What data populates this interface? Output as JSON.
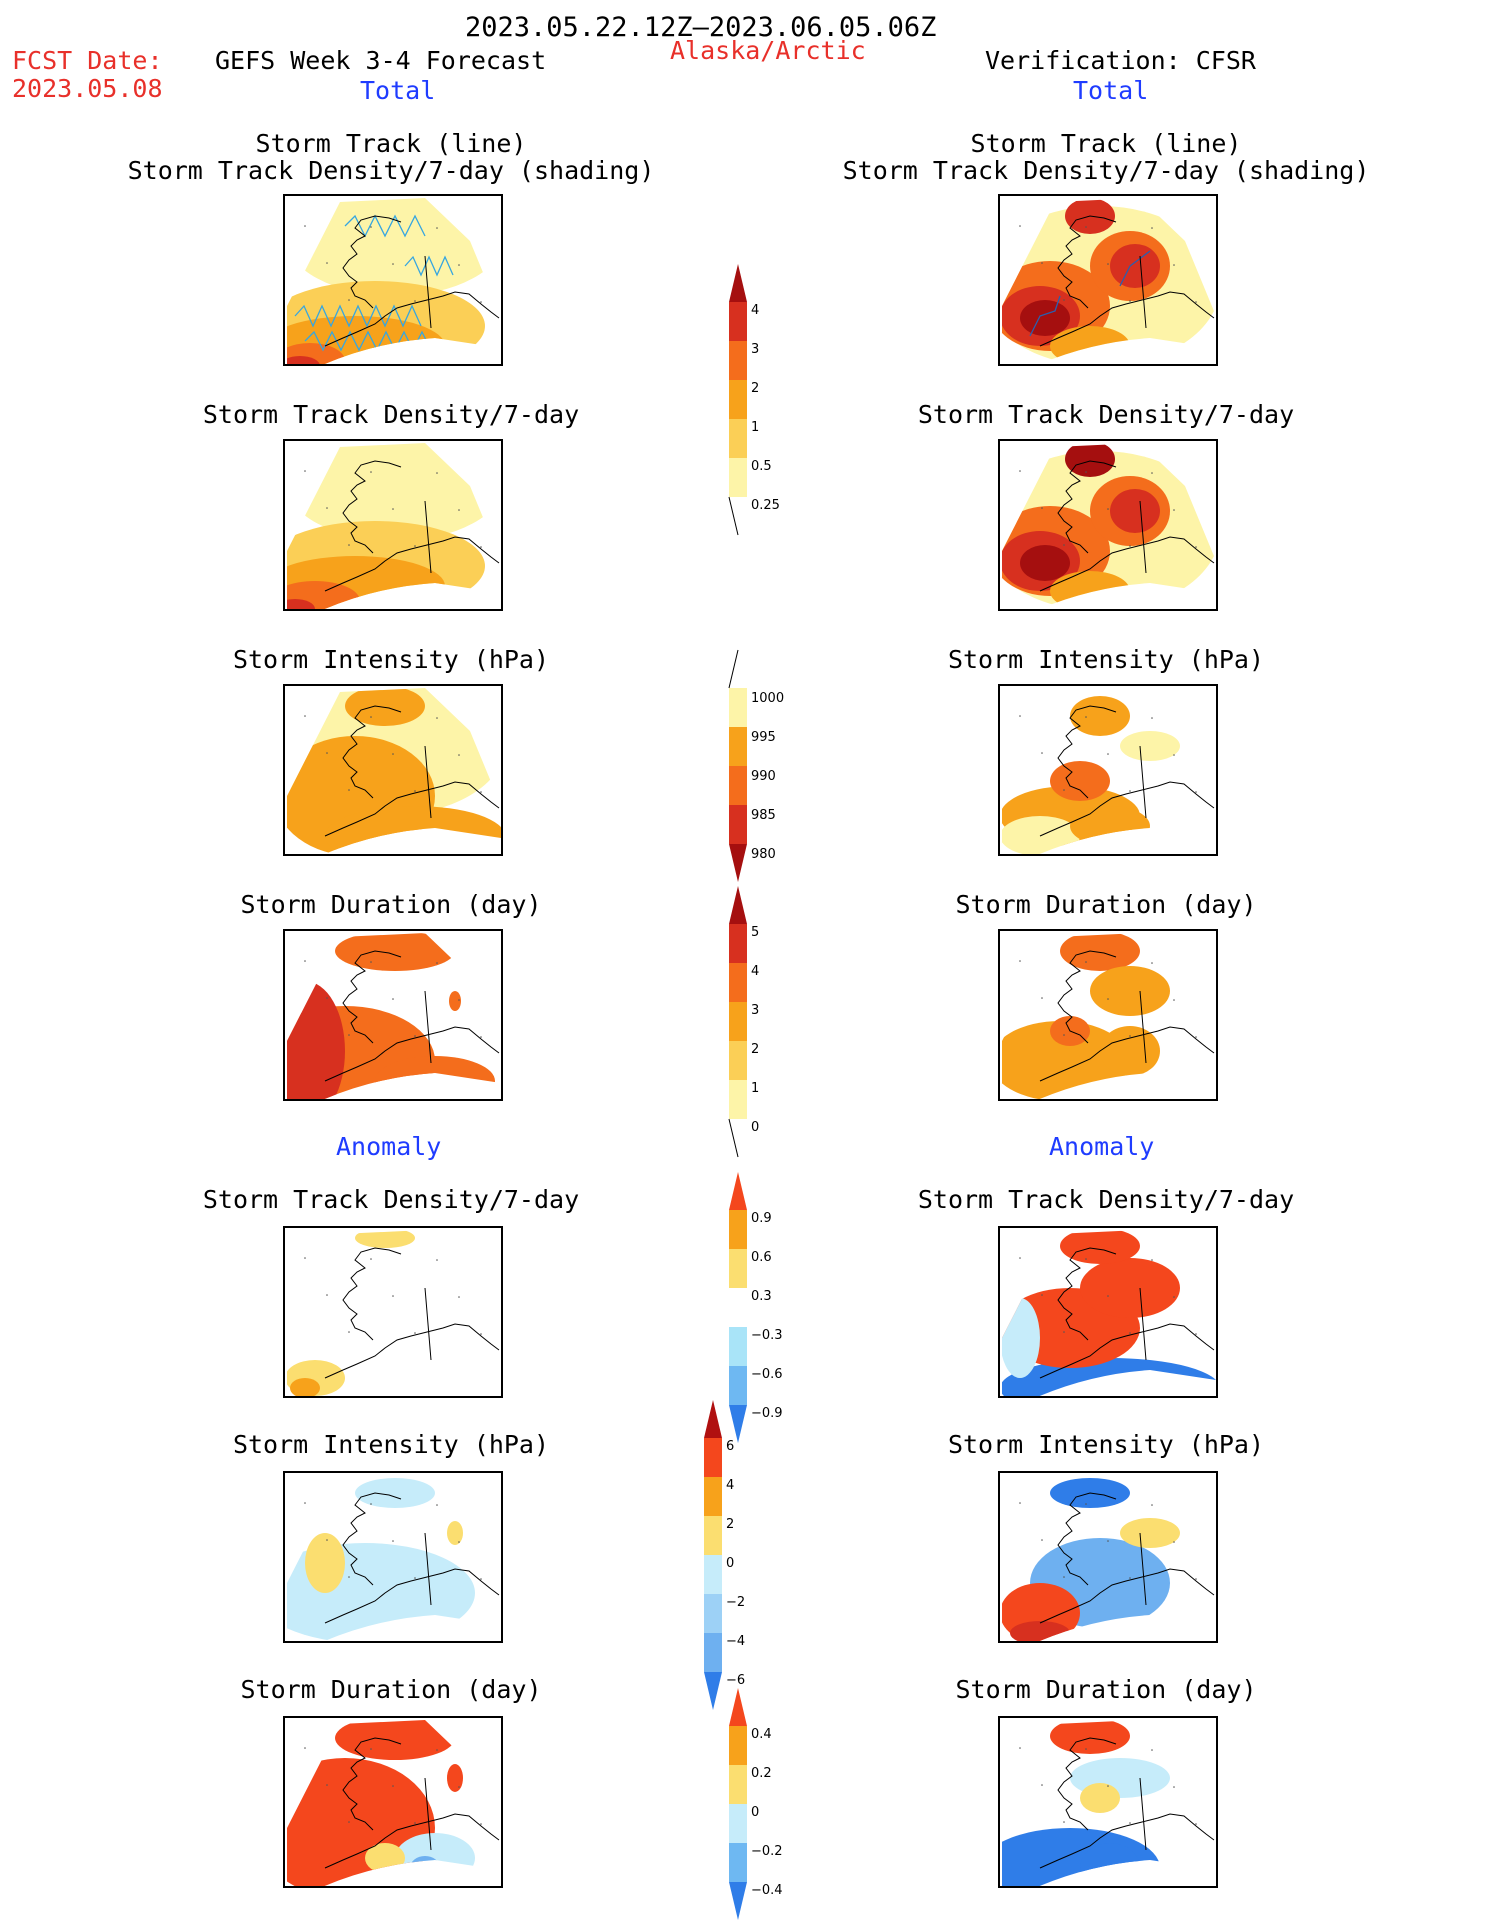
{
  "header": {
    "period": "2023.05.22.12Z–2023.06.05.06Z",
    "fcst_label": "FCST Date:",
    "fcst_date": "2023.05.08",
    "forecast_title": "GEFS Week 3-4 Forecast",
    "region": "Alaska/Arctic",
    "verification_title": "Verification: CFSR",
    "left_total": "Total",
    "right_total": "Total",
    "left_anomaly": "Anomaly",
    "right_anomaly": "Anomaly"
  },
  "panel_titles": {
    "track_line": "Storm Track (line)",
    "track_shading": "Storm Track Density/7-day (shading)",
    "density": "Storm Track Density/7-day",
    "intensity": "Storm Intensity (hPa)",
    "duration": "Storm Duration (day)"
  },
  "colorbars": {
    "density": {
      "labels": [
        "4",
        "3",
        "2",
        "1",
        "0.5",
        "0.25"
      ],
      "colors": [
        "#a50f0f",
        "#d7301f",
        "#f46d1c",
        "#f7a21b",
        "#fbcf56",
        "#fdf4a8"
      ]
    },
    "intensity": {
      "labels": [
        "1000",
        "995",
        "990",
        "985",
        "980"
      ],
      "colors": [
        "#fdf4a8",
        "#f7a21b",
        "#f46d1c",
        "#d7301f",
        "#a50f0f"
      ]
    },
    "duration": {
      "labels": [
        "5",
        "4",
        "3",
        "2",
        "1",
        "0"
      ],
      "colors": [
        "#a50f0f",
        "#d7301f",
        "#f46d1c",
        "#f7a21b",
        "#fbcf56",
        "#fdf4a8"
      ]
    },
    "density_anom": {
      "labels": [
        "0.9",
        "0.6",
        "0.3",
        "−0.3",
        "−0.6",
        "−0.9"
      ],
      "colors": [
        "#f4471d",
        "#f7a21b",
        "#fbde70",
        "#ffffff",
        "#a9e4f8",
        "#6eb8f2",
        "#2f7de8"
      ]
    },
    "intensity_anom": {
      "labels": [
        "6",
        "4",
        "2",
        "0",
        "−2",
        "−4",
        "−6"
      ],
      "colors": [
        "#b01010",
        "#f4471d",
        "#f7a21b",
        "#fbde70",
        "#c6ecfa",
        "#9dd1f6",
        "#6eb0f0",
        "#2f7de8"
      ]
    },
    "duration_anom": {
      "labels": [
        "0.4",
        "0.2",
        "0",
        "−0.2",
        "−0.4"
      ],
      "colors": [
        "#f4471d",
        "#f7a21b",
        "#fbde70",
        "#c6ecfa",
        "#6eb8f2",
        "#2f7de8"
      ]
    }
  },
  "colors": {
    "title_red": "#e8302a",
    "title_blue": "#1f3cff",
    "track_line": "#36a6e0",
    "track_line_dark": "#2a5fb0"
  }
}
